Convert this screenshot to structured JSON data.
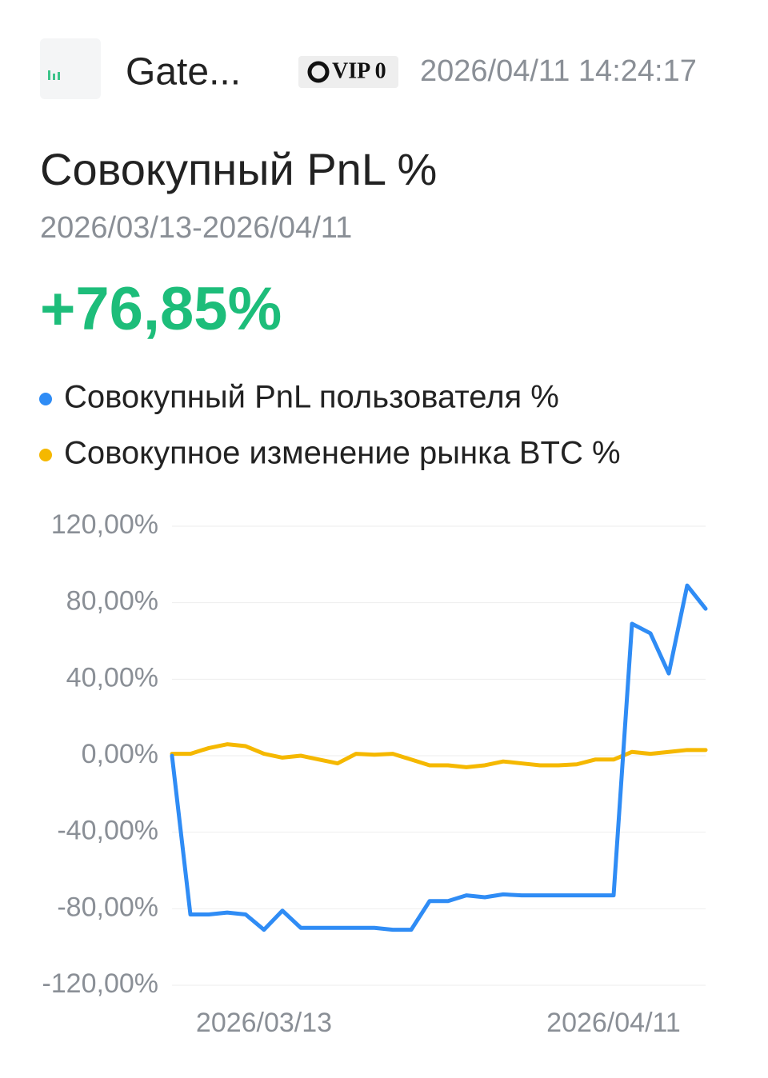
{
  "header": {
    "name": "Gate...",
    "badge": "VIP 0",
    "timestamp": "2026/04/11 14:24:17"
  },
  "chart_data": {
    "type": "line",
    "title": "Совокупный PnL %",
    "subtitle": "2026/03/13-2026/04/11",
    "annotation": "+76,85%",
    "categories": [
      null,
      null,
      null,
      null,
      null,
      "2026/03/13",
      null,
      null,
      null,
      null,
      null,
      null,
      null,
      null,
      null,
      null,
      null,
      null,
      null,
      null,
      null,
      null,
      null,
      null,
      "2026/04/11",
      null,
      null,
      null,
      null,
      null
    ],
    "series": [
      {
        "name": "Совокупный PnL пользователя %",
        "color": "#2f8cf5",
        "values": [
          0,
          -83,
          -83,
          -82,
          -83,
          -91,
          -81,
          -90,
          -90,
          -90,
          -90,
          -90,
          -91,
          -91,
          -76,
          -76,
          -73,
          -74,
          -72.5,
          -73,
          -73,
          -73,
          -73,
          -73,
          -73,
          69,
          64,
          43,
          89,
          76.85
        ]
      },
      {
        "name": "Совокупное изменение рынка BTC %",
        "color": "#f5b800",
        "values": [
          1,
          1,
          4,
          6,
          5,
          1,
          -1,
          0,
          -2,
          -4,
          1,
          0.5,
          1,
          -2,
          -5,
          -5,
          -6,
          -5,
          -3,
          -4,
          -5,
          -5,
          -4.5,
          -2,
          -2,
          2,
          1,
          2,
          3,
          3
        ]
      }
    ],
    "ylim": [
      -120,
      120
    ],
    "yticks": [
      {
        "value": 120,
        "label": "120,00%"
      },
      {
        "value": 80,
        "label": "80,00%"
      },
      {
        "value": 40,
        "label": "40,00%"
      },
      {
        "value": 0,
        "label": "0,00%"
      },
      {
        "value": -40,
        "label": "-40,00%"
      },
      {
        "value": -80,
        "label": "-80,00%"
      },
      {
        "value": -120,
        "label": "-120,00%"
      }
    ],
    "grid": true
  }
}
